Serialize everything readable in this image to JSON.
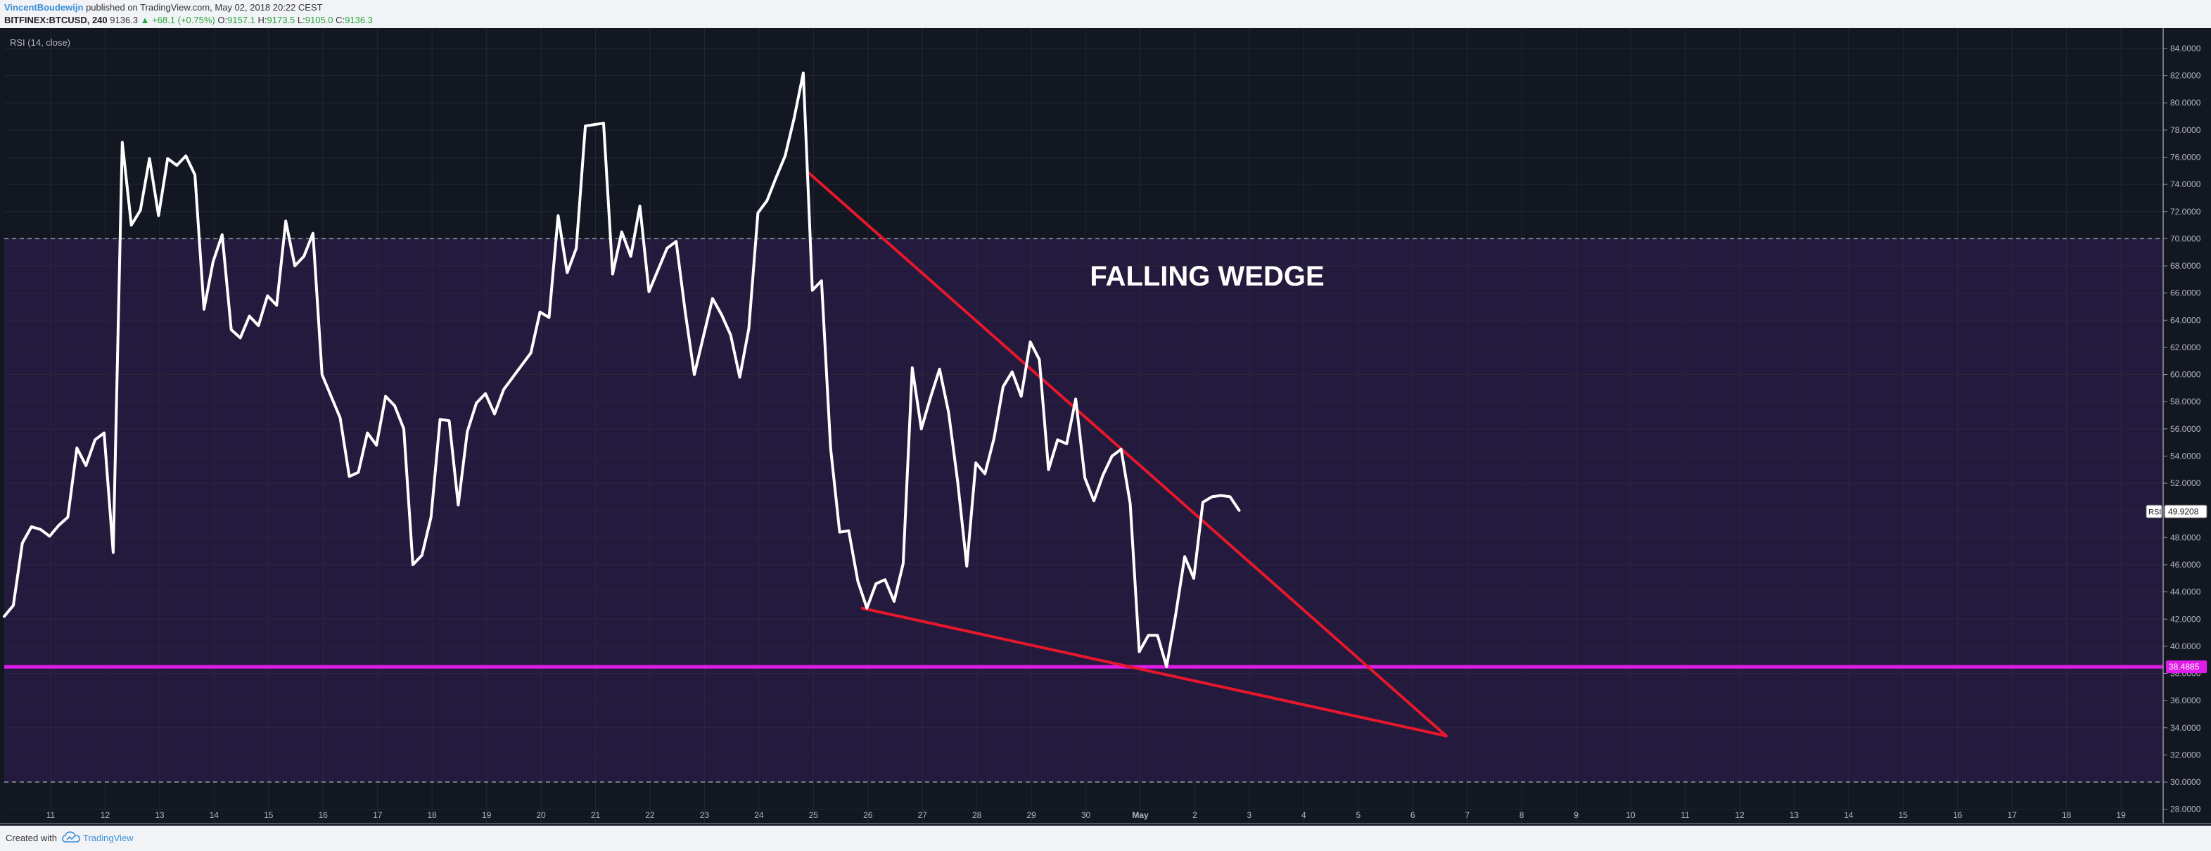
{
  "header": {
    "author": "VincentBoudewijn",
    "published": "published on TradingView.com, May 02, 2018 20:22 CEST",
    "symbol": "BITFINEX:BTCUSD, 240",
    "last": "9136.3",
    "change": "▲ +68.1 (+0.75%)",
    "o_label": "O:",
    "o_value": "9157.1",
    "h_label": "H:",
    "h_value": "9173.5",
    "l_label": "L:",
    "l_value": "9105.0",
    "c_label": "C:",
    "c_value": "9136.3"
  },
  "footer": {
    "created_with": "Created with",
    "brand": "TradingView"
  },
  "colors": {
    "background": "#131722",
    "band": "#241a3d",
    "rsi_line": "#ffffff",
    "trendline": "#e8172c",
    "support": "#e01ce8",
    "grid": "#2a2e39"
  },
  "chart_data": {
    "type": "line",
    "indicator_label": "RSI (14, close)",
    "annotation": "FALLING WEDGE",
    "ylim": [
      27,
      85.5
    ],
    "y_ticks": [
      "28.0000",
      "30.0000",
      "32.0000",
      "34.0000",
      "36.0000",
      "38.0000",
      "40.0000",
      "42.0000",
      "44.0000",
      "46.0000",
      "48.0000",
      "50.0000",
      "52.0000",
      "54.0000",
      "56.0000",
      "58.0000",
      "60.0000",
      "62.0000",
      "64.0000",
      "66.0000",
      "68.0000",
      "70.0000",
      "72.0000",
      "74.0000",
      "76.0000",
      "78.0000",
      "80.0000",
      "82.0000",
      "84.0000"
    ],
    "x_ticks": [
      "11",
      "12",
      "13",
      "14",
      "15",
      "16",
      "17",
      "18",
      "19",
      "20",
      "21",
      "22",
      "23",
      "24",
      "25",
      "26",
      "27",
      "28",
      "29",
      "30",
      "May",
      "2",
      "3",
      "4",
      "5",
      "6",
      "7",
      "8",
      "9",
      "10",
      "11",
      "12",
      "13",
      "14",
      "15",
      "16",
      "17",
      "18",
      "19"
    ],
    "bands": [
      {
        "from": 30,
        "to": 70
      }
    ],
    "hlines": [
      {
        "value": 30
      },
      {
        "value": 70
      }
    ],
    "support_level": {
      "value": 38.4885,
      "label": "38.4885"
    },
    "last_value_label": {
      "name": "RSI",
      "value": "49.9208"
    },
    "series": [
      {
        "values": [
          42.2,
          43.0,
          47.6,
          48.8,
          48.6,
          48.1,
          48.9,
          49.5,
          54.6,
          53.3,
          55.2,
          55.7,
          46.9,
          77.1,
          71.0,
          72.1,
          75.9,
          71.7,
          75.9,
          75.4,
          76.1,
          74.7,
          64.8,
          68.3,
          70.3,
          63.3,
          62.7,
          64.3,
          63.6,
          65.8,
          65.1,
          71.3,
          68.0,
          68.7,
          70.4,
          60.0,
          58.4,
          56.8,
          52.5,
          52.8,
          55.7,
          54.8,
          58.4,
          57.7,
          56.0,
          46.0,
          46.7,
          49.5,
          56.7,
          56.6,
          50.4,
          55.8,
          57.9,
          58.6,
          57.1,
          58.9,
          59.8,
          60.7,
          61.6,
          64.6,
          64.2,
          71.7,
          67.5,
          69.3,
          78.3,
          78.4,
          78.5,
          67.4,
          70.5,
          68.7,
          72.4,
          66.1,
          67.7,
          69.3,
          69.8,
          64.6,
          60.0,
          62.8,
          65.6,
          64.4,
          62.9,
          59.8,
          63.4,
          71.9,
          72.8,
          74.5,
          76.1,
          78.9,
          82.2,
          66.2,
          66.9,
          54.6,
          48.4,
          48.5,
          44.8,
          42.8,
          44.6,
          44.9,
          43.3,
          46.1,
          60.5,
          56.0,
          58.3,
          60.4,
          57.2,
          52.1,
          45.9,
          53.5,
          52.7,
          55.3,
          59.1,
          60.2,
          58.4,
          62.4,
          61.1,
          53.0,
          55.2,
          54.9,
          58.2,
          52.4,
          50.7,
          52.6,
          54.0,
          54.5,
          50.5,
          39.6,
          40.8,
          40.8,
          38.5,
          42.3,
          46.6,
          45.0,
          50.6,
          51.0,
          51.1,
          51.0,
          50.0
        ]
      }
    ],
    "trendlines": [
      {
        "x1": 88.5,
        "y1": 74.9,
        "x2": 158.8,
        "y2": 33.4
      },
      {
        "x1": 94.5,
        "y1": 42.8,
        "x2": 158.8,
        "y2": 33.4
      }
    ]
  }
}
